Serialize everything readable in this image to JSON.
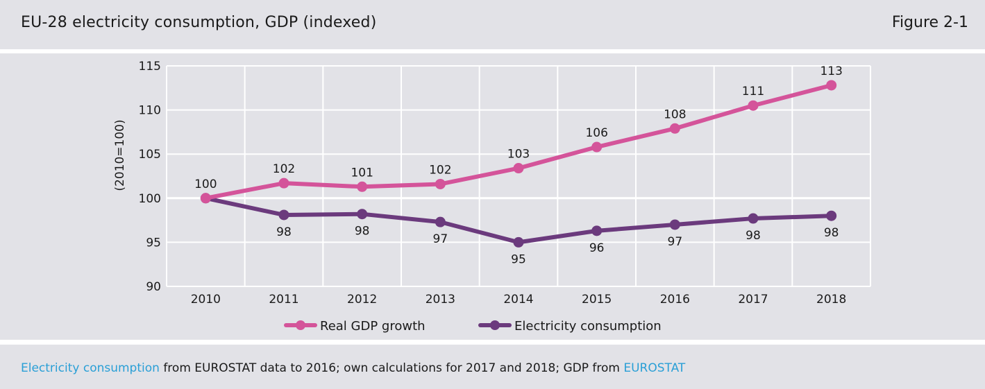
{
  "header": {
    "title": "EU-28 electricity consumption, GDP (indexed)",
    "figure_label": "Figure 2-1"
  },
  "footer": {
    "link1": "Electricity consumption",
    "text1": " from EUROSTAT data to 2016; own calculations for 2017 and 2018; GDP from ",
    "link2": "EUROSTAT"
  },
  "colors": {
    "gdp": "#d4549a",
    "electricity": "#6b3a7d",
    "grid": "#ffffff",
    "panel": "#e2e2e7"
  },
  "chart_data": {
    "type": "line",
    "title": "EU-28 electricity consumption, GDP (indexed)",
    "ylabel": "(2010=100)",
    "xlabel": "",
    "x": [
      "2010",
      "2011",
      "2012",
      "2013",
      "2014",
      "2015",
      "2016",
      "2017",
      "2018"
    ],
    "ylim": [
      90,
      115
    ],
    "yticks": [
      90,
      95,
      100,
      105,
      110,
      115
    ],
    "grid": true,
    "legend_position": "bottom",
    "series": [
      {
        "name": "Real GDP growth",
        "values": [
          100,
          101.7,
          101.3,
          101.6,
          103.4,
          105.8,
          107.9,
          110.5,
          112.8
        ],
        "labels": [
          "100",
          "102",
          "101",
          "102",
          "103",
          "106",
          "108",
          "111",
          "113"
        ],
        "label_position": "above"
      },
      {
        "name": "Electricity consumption",
        "values": [
          100,
          98.1,
          98.2,
          97.3,
          95.0,
          96.3,
          97.0,
          97.7,
          98.0
        ],
        "labels": [
          "",
          "98",
          "98",
          "97",
          "95",
          "96",
          "97",
          "98",
          "98"
        ],
        "label_position": "below"
      }
    ]
  }
}
